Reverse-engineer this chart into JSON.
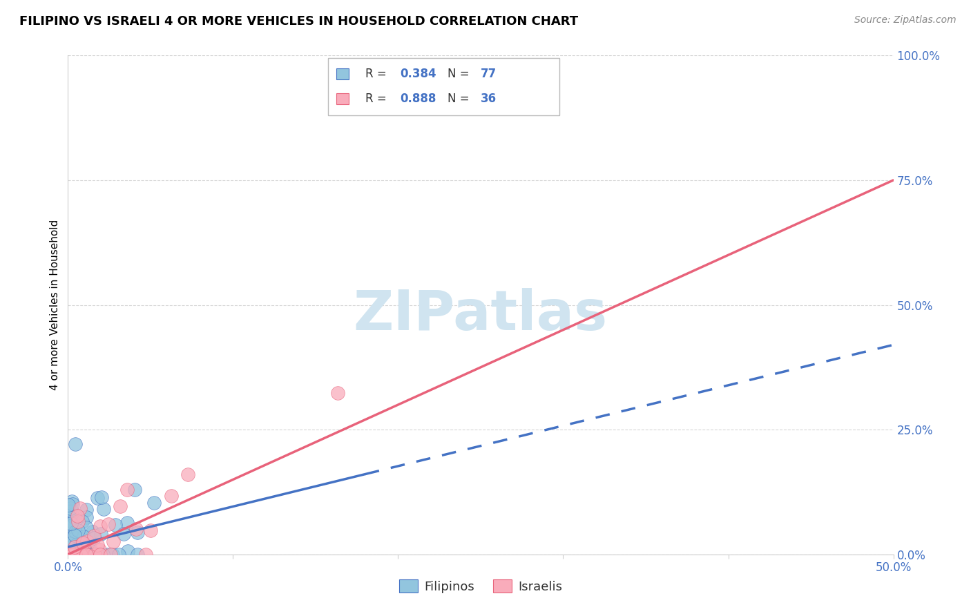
{
  "title": "FILIPINO VS ISRAELI 4 OR MORE VEHICLES IN HOUSEHOLD CORRELATION CHART",
  "source": "Source: ZipAtlas.com",
  "ylabel": "4 or more Vehicles in Household",
  "ytick_values": [
    0,
    25,
    50,
    75,
    100
  ],
  "xlim": [
    0,
    50
  ],
  "ylim": [
    0,
    100
  ],
  "filipino_R": "0.384",
  "filipino_N": "77",
  "israeli_R": "0.888",
  "israeli_N": "36",
  "filipino_color": "#92C5DE",
  "israeli_color": "#F9ACBB",
  "filipino_line_color": "#4472C4",
  "israeli_line_color": "#E8627A",
  "watermark_color": "#D0E4F0",
  "fil_trend_x0": 0,
  "fil_trend_y0": 1.5,
  "fil_trend_x1": 50,
  "fil_trend_y1": 42,
  "fil_solid_x1": 18,
  "isr_trend_x0": 0,
  "isr_trend_y0": 0,
  "isr_trend_x1": 50,
  "isr_trend_y1": 75,
  "background_color": "#FFFFFF"
}
